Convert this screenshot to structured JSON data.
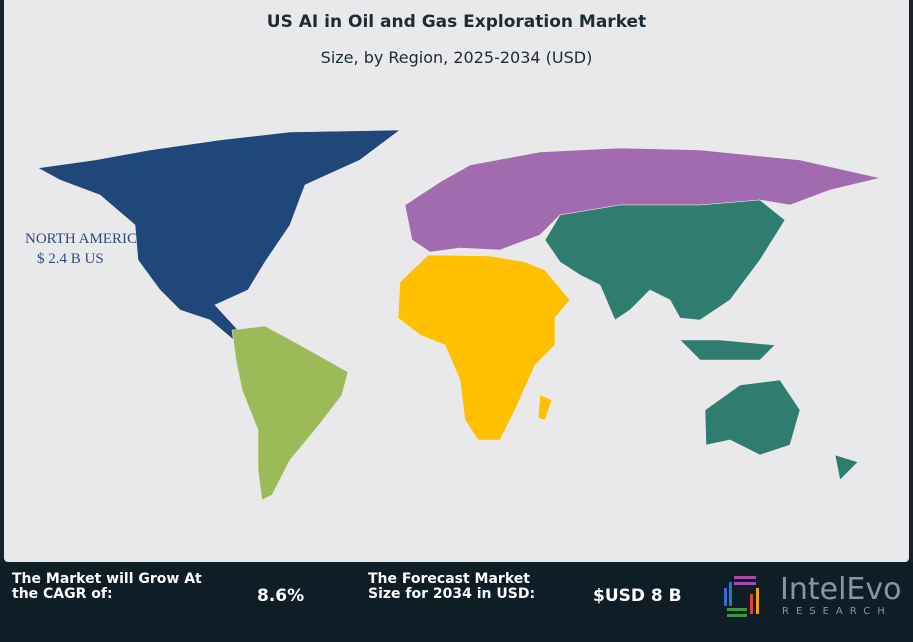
{
  "chart_data": {
    "type": "choropleth-map",
    "title": "US AI in Oil and Gas Exploration Market",
    "subtitle": "Size, by Region, 2025-2034 (USD)",
    "regions": [
      {
        "name": "North America",
        "color": "#1f477a"
      },
      {
        "name": "South America",
        "color": "#9cbb58"
      },
      {
        "name": "Europe",
        "color": "#a26bb0"
      },
      {
        "name": "Africa / Middle East",
        "color": "#ffc000"
      },
      {
        "name": "Asia Pacific",
        "color": "#2e7d6e"
      }
    ],
    "annotations": [
      {
        "region": "NORTH AMERICA",
        "value": "$ 2.4 B US"
      }
    ]
  },
  "footer": {
    "cagr_label": "The Market will Grow At the CAGR of:",
    "cagr_value": "8.6%",
    "forecast_label": "The Forecast Market Size for 2034 in USD:",
    "forecast_value": "$USD 8 B",
    "logo_name": "IntelEvo",
    "logo_sub": "RESEARCH"
  }
}
